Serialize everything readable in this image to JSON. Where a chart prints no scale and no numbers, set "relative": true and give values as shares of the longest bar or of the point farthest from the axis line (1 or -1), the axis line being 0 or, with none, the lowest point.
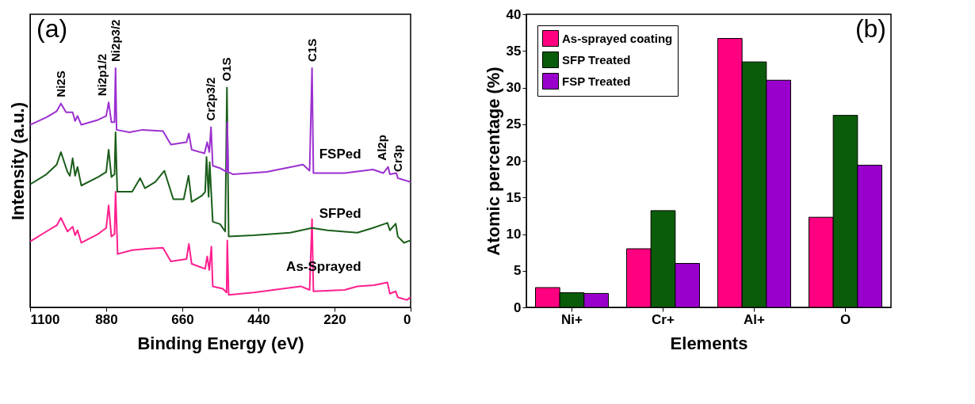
{
  "chart_data": [
    {
      "type": "line",
      "title": "(a)",
      "xlabel": "Binding Energy (eV)",
      "ylabel": "Intensity (a.u.)",
      "relative": true,
      "tick_labels": "x",
      "xlim": [
        1100,
        0
      ],
      "xticks": [
        1100,
        880,
        660,
        440,
        220,
        0
      ],
      "line_style": "solid",
      "marker": "none",
      "series": [
        {
          "name": "FSPed",
          "color": "#9b30d0",
          "x": [
            1100,
            1053,
            1023,
            1011,
            996,
            977,
            970,
            963,
            952,
            903,
            880,
            873,
            865,
            856,
            853,
            850,
            813,
            775,
            716,
            693,
            648,
            641,
            633,
            596,
            588,
            582,
            577,
            572,
            551,
            532,
            530,
            527,
            513,
            416,
            311,
            292,
            285,
            281,
            191,
            109,
            79,
            65,
            60,
            41,
            37,
            0
          ],
          "values": [
            0.763,
            0.794,
            0.82,
            0.852,
            0.815,
            0.815,
            0.779,
            0.8,
            0.763,
            0.784,
            0.8,
            0.857,
            0.774,
            0.774,
            1.0,
            0.742,
            0.732,
            0.742,
            0.737,
            0.68,
            0.69,
            0.727,
            0.659,
            0.644,
            0.69,
            0.649,
            0.753,
            0.592,
            0.582,
            0.566,
            0.774,
            0.566,
            0.556,
            0.566,
            0.597,
            0.571,
            1.0,
            0.561,
            0.561,
            0.576,
            0.561,
            0.587,
            0.556,
            0.561,
            0.54,
            0.524
          ]
        },
        {
          "name": "SFPed",
          "color": "#1a5e1a",
          "x": [
            1100,
            1053,
            1023,
            1011,
            992,
            985,
            977,
            970,
            963,
            952,
            903,
            880,
            873,
            865,
            856,
            853,
            848,
            805,
            782,
            768,
            738,
            712,
            686,
            656,
            642,
            633,
            603,
            594,
            590,
            584,
            581,
            572,
            551,
            536,
            531,
            526,
            453,
            348,
            285,
            240,
            154,
            109,
            67,
            60,
            43,
            37,
            19,
            0
          ],
          "values": [
            0.514,
            0.556,
            0.597,
            0.649,
            0.566,
            0.55,
            0.623,
            0.55,
            0.587,
            0.509,
            0.545,
            0.566,
            0.659,
            0.545,
            0.556,
            0.732,
            0.483,
            0.483,
            0.54,
            0.498,
            0.524,
            0.571,
            0.452,
            0.452,
            0.55,
            0.441,
            0.467,
            0.483,
            0.628,
            0.462,
            0.607,
            0.358,
            0.348,
            0.317,
            0.919,
            0.296,
            0.301,
            0.312,
            0.332,
            0.322,
            0.312,
            0.332,
            0.353,
            0.322,
            0.35,
            0.296,
            0.27,
            0.28
          ]
        },
        {
          "name": "As-Sprayed",
          "color": "#ff1f8e",
          "x": [
            1100,
            1053,
            1023,
            1011,
            992,
            977,
            970,
            963,
            952,
            903,
            880,
            873,
            865,
            856,
            853,
            847,
            805,
            768,
            716,
            693,
            648,
            641,
            633,
            594,
            588,
            582,
            576,
            572,
            543,
            532,
            530,
            526,
            453,
            318,
            292,
            285,
            281,
            191,
            154,
            105,
            67,
            60,
            43,
            37,
            11,
            0
          ],
          "values": [
            0.275,
            0.317,
            0.343,
            0.374,
            0.317,
            0.337,
            0.301,
            0.322,
            0.27,
            0.307,
            0.332,
            0.426,
            0.296,
            0.306,
            0.483,
            0.223,
            0.239,
            0.244,
            0.249,
            0.192,
            0.202,
            0.265,
            0.182,
            0.161,
            0.213,
            0.156,
            0.254,
            0.088,
            0.078,
            0.062,
            0.28,
            0.052,
            0.062,
            0.088,
            0.073,
            0.369,
            0.067,
            0.073,
            0.088,
            0.093,
            0.104,
            0.057,
            0.067,
            0.042,
            0.031,
            0.042
          ]
        }
      ],
      "annotations": [
        {
          "text": "Ni2S",
          "x": 1011,
          "y": 0.852
        },
        {
          "text": "Ni2p1/2",
          "x": 873,
          "y": 0.857
        },
        {
          "text": "Ni2p3/2",
          "x": 853,
          "y": 1.0
        },
        {
          "text": "Cr2p3/2",
          "x": 577,
          "y": 0.753
        },
        {
          "text": "O1S",
          "x": 531,
          "y": 0.919
        },
        {
          "text": "C1S",
          "x": 285,
          "y": 1.0
        },
        {
          "text": "Al2p",
          "x": 65,
          "y": 0.587
        },
        {
          "text": "Cr3p",
          "x": 37,
          "y": 0.54
        }
      ]
    },
    {
      "type": "bar",
      "title": "(b)",
      "xlabel": "Elements",
      "ylabel": "Atomic percentage (%)",
      "categories": [
        "Ni+",
        "Cr+",
        "Al+",
        "O"
      ],
      "ylim": [
        0,
        40
      ],
      "yticks": [
        0,
        5,
        10,
        15,
        20,
        25,
        30,
        35,
        40
      ],
      "legend": "top left",
      "series": [
        {
          "name": "As-sprayed coating",
          "color": "#ff0080",
          "values": [
            2.7,
            8.0,
            36.7,
            12.3
          ]
        },
        {
          "name": "SFP Treated",
          "color": "#0a5c0a",
          "values": [
            2.0,
            13.2,
            33.5,
            26.2
          ]
        },
        {
          "name": "FSP Treated",
          "color": "#9900cc",
          "values": [
            1.9,
            6.0,
            31.0,
            19.4
          ]
        }
      ]
    }
  ]
}
